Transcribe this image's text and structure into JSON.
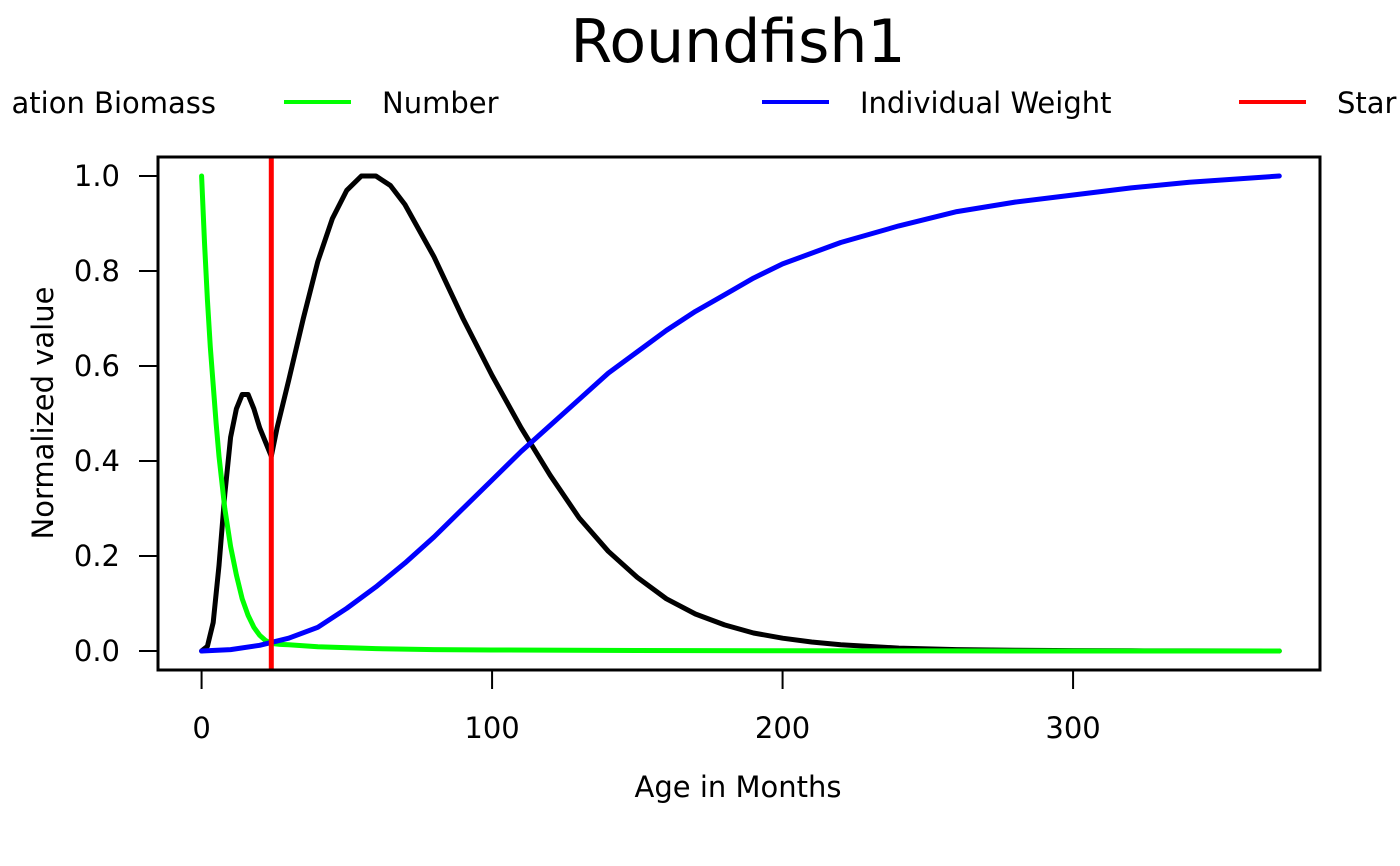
{
  "chart_data": {
    "type": "line",
    "title": "Roundfish1",
    "xlabel": "Age in Months",
    "ylabel": "Normalized value",
    "xlim": [
      -15,
      385
    ],
    "ylim": [
      -0.04,
      1.04
    ],
    "x_ticks": [
      "0",
      "100",
      "200",
      "300"
    ],
    "y_ticks": [
      "0.0",
      "0.2",
      "0.4",
      "0.6",
      "0.8",
      "1.0"
    ],
    "grid": false,
    "legend_position": "top",
    "legend": {
      "items": [
        {
          "label": "Population Biomass",
          "visible_text": "ation Biomass",
          "color": "#000000"
        },
        {
          "label": "Number",
          "visible_text": "Number",
          "color": "#00ff00"
        },
        {
          "label": "Individual Weight",
          "visible_text": "Individual Weight",
          "color": "#0000ff"
        },
        {
          "label": "Start",
          "visible_text": "Star",
          "color": "#ff0000"
        }
      ]
    },
    "series": [
      {
        "name": "Population Biomass",
        "color": "#000000",
        "x": [
          0,
          2,
          4,
          6,
          8,
          10,
          12,
          14,
          16,
          18,
          20,
          22,
          24,
          26,
          30,
          35,
          40,
          45,
          50,
          55,
          60,
          65,
          70,
          80,
          90,
          100,
          110,
          120,
          130,
          140,
          150,
          160,
          170,
          180,
          190,
          200,
          210,
          220,
          240,
          260,
          280,
          300,
          320,
          340,
          371
        ],
        "y": [
          0.0,
          0.01,
          0.06,
          0.18,
          0.33,
          0.45,
          0.51,
          0.54,
          0.54,
          0.51,
          0.47,
          0.44,
          0.41,
          0.47,
          0.57,
          0.7,
          0.82,
          0.91,
          0.97,
          1.0,
          1.0,
          0.98,
          0.94,
          0.83,
          0.7,
          0.58,
          0.47,
          0.37,
          0.28,
          0.21,
          0.155,
          0.11,
          0.078,
          0.055,
          0.038,
          0.027,
          0.019,
          0.013,
          0.006,
          0.003,
          0.0015,
          0.0008,
          0.0004,
          0.0002,
          0.0
        ]
      },
      {
        "name": "Number",
        "color": "#00ff00",
        "x": [
          0,
          1,
          2,
          3,
          4,
          5,
          6,
          8,
          10,
          12,
          14,
          16,
          18,
          20,
          22,
          24,
          27,
          30,
          40,
          60,
          80,
          100,
          150,
          200,
          250,
          300,
          371
        ],
        "y": [
          1.0,
          0.86,
          0.74,
          0.64,
          0.56,
          0.48,
          0.41,
          0.3,
          0.22,
          0.16,
          0.11,
          0.075,
          0.05,
          0.033,
          0.022,
          0.016,
          0.014,
          0.013,
          0.009,
          0.005,
          0.003,
          0.002,
          0.001,
          0.0005,
          0.0002,
          0.0001,
          0.0
        ]
      },
      {
        "name": "Individual Weight",
        "color": "#0000ff",
        "x": [
          0,
          10,
          20,
          30,
          40,
          50,
          60,
          70,
          80,
          90,
          100,
          110,
          120,
          130,
          140,
          150,
          160,
          170,
          180,
          190,
          200,
          220,
          240,
          260,
          280,
          300,
          320,
          340,
          371
        ],
        "y": [
          0.0,
          0.003,
          0.012,
          0.027,
          0.05,
          0.09,
          0.135,
          0.185,
          0.24,
          0.3,
          0.36,
          0.42,
          0.475,
          0.53,
          0.585,
          0.63,
          0.675,
          0.715,
          0.75,
          0.785,
          0.815,
          0.86,
          0.895,
          0.925,
          0.945,
          0.96,
          0.975,
          0.987,
          1.0
        ]
      },
      {
        "name": "Start",
        "color": "#ff0000",
        "type": "vline",
        "x_value": 24
      }
    ]
  }
}
